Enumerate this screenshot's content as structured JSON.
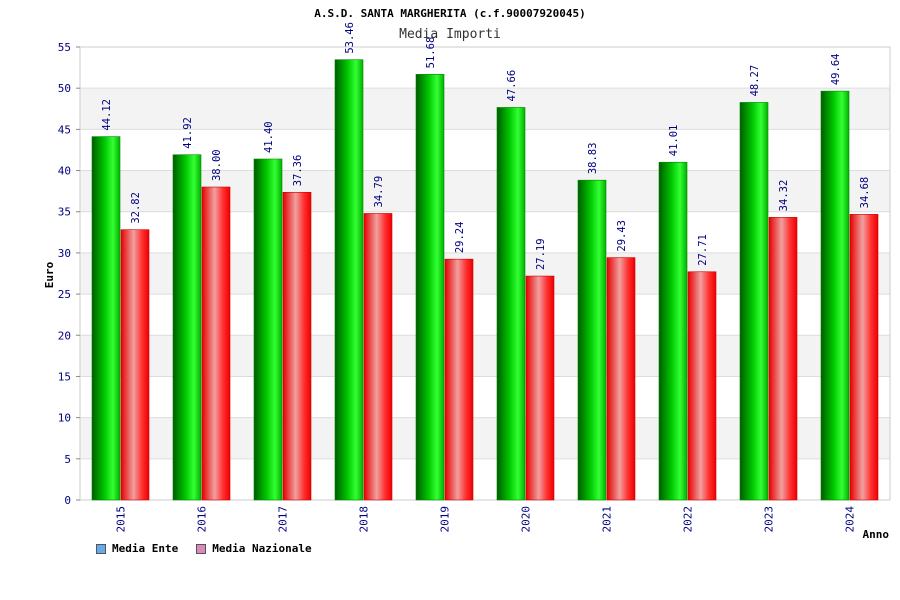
{
  "chart_data": {
    "type": "bar",
    "title": "A.S.D. SANTA MARGHERITA (c.f.90007920045)",
    "subtitle": "Media Importi",
    "xlabel": "Anno",
    "ylabel": "Euro",
    "ylim": [
      0,
      55
    ],
    "ytick_step": 5,
    "grid": true,
    "legend_position": "bottom-left",
    "categories": [
      "2015",
      "2016",
      "2017",
      "2018",
      "2019",
      "2020",
      "2021",
      "2022",
      "2023",
      "2024"
    ],
    "series": [
      {
        "name": "Media Ente",
        "values": [
          44.12,
          41.92,
          41.4,
          53.46,
          51.68,
          47.66,
          38.83,
          41.01,
          48.27,
          49.64
        ],
        "labels": [
          "44.12",
          "41.92",
          "41.40",
          "53.46",
          "51.68",
          "47.66",
          "38.83",
          "41.01",
          "48.27",
          "49.64"
        ],
        "color": "#00cc00",
        "legend_color": "#66aaee"
      },
      {
        "name": "Media Nazionale",
        "values": [
          32.82,
          38.0,
          37.36,
          34.79,
          29.24,
          27.19,
          29.43,
          27.71,
          34.32,
          34.68
        ],
        "labels": [
          "32.82",
          "38.00",
          "37.36",
          "34.79",
          "29.24",
          "27.19",
          "29.43",
          "27.71",
          "34.32",
          "34.68"
        ],
        "color": "#ff0000",
        "legend_color": "#dd88bb"
      }
    ]
  }
}
